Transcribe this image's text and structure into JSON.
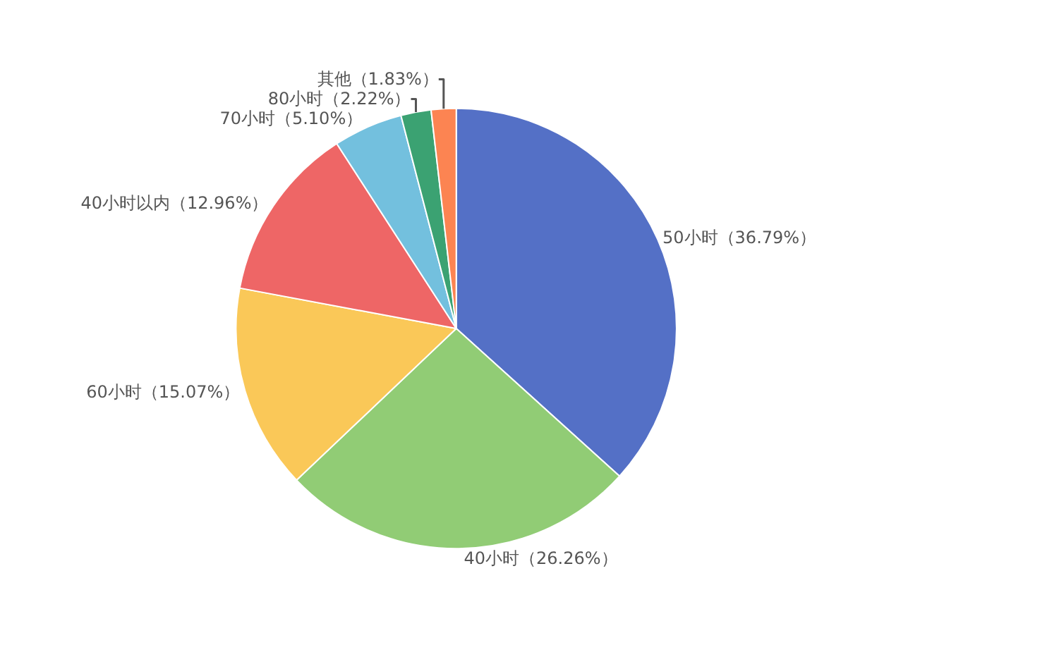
{
  "chart_data": {
    "type": "pie",
    "categories": [
      "50小时",
      "40小时",
      "60小时",
      "40小时以内",
      "70小时",
      "80小时",
      "其他"
    ],
    "values": [
      36.79,
      26.26,
      15.07,
      12.96,
      5.1,
      2.22,
      1.83
    ],
    "value_labels": [
      "（36.79%）",
      "（26.26%）",
      "（15.07%）",
      "（12.96%）",
      "（5.10%）",
      "（2.22%）",
      "（1.83%）"
    ],
    "colors": [
      "#5470c6",
      "#91cc75",
      "#fac858",
      "#ee6666",
      "#73c0de",
      "#3ba272",
      "#fc8452"
    ],
    "legend": false
  }
}
